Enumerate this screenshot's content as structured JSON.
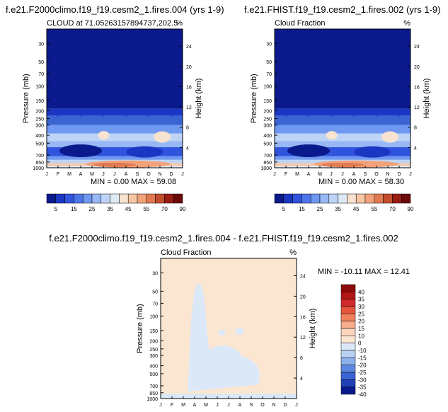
{
  "chart_data": [
    {
      "type": "heatmap",
      "title": "f.e21.F2000climo.f19_f19.cesm2_1.fires.004 (yrs 1-9)",
      "left_label": "CLOUD at 71.05263157894737,202.5",
      "right_label": "%",
      "xlabel": "",
      "ylabel": "Pressure (mb)",
      "ylabel_right": "Height (km)",
      "x_ticks": [
        "J",
        "F",
        "M",
        "A",
        "M",
        "J",
        "J",
        "A",
        "S",
        "O",
        "N",
        "D",
        "J"
      ],
      "y_ticks": [
        "30",
        "50",
        "70",
        "100",
        "150",
        "200",
        "250",
        "300",
        "400",
        "500",
        "700",
        "850",
        "1000"
      ],
      "y_ticks_right": [
        "4",
        "8",
        "12",
        "16",
        "20",
        "24"
      ],
      "stats": "MIN =   0.00 MAX =  59.08",
      "colorbar_labels": [
        "5",
        "15",
        "25",
        "35",
        "45",
        "55",
        "70",
        "90"
      ],
      "min": 0.0,
      "max": 59.08
    },
    {
      "type": "heatmap",
      "title": "f.e21.FHIST.f19_f19.cesm2_1.fires.002 (yrs 1-9)",
      "left_label": "Cloud Fraction",
      "right_label": "%",
      "xlabel": "",
      "ylabel": "Pressure (mb)",
      "ylabel_right": "Height (km)",
      "x_ticks": [
        "J",
        "F",
        "M",
        "A",
        "M",
        "J",
        "J",
        "A",
        "S",
        "O",
        "N",
        "D",
        "J"
      ],
      "y_ticks": [
        "30",
        "50",
        "70",
        "100",
        "150",
        "200",
        "250",
        "300",
        "400",
        "500",
        "700",
        "850",
        "1000"
      ],
      "y_ticks_right": [
        "4",
        "8",
        "12",
        "16",
        "20",
        "24"
      ],
      "stats": "MIN =   0.00 MAX =  58.30",
      "colorbar_labels": [
        "5",
        "15",
        "25",
        "35",
        "45",
        "55",
        "70",
        "90"
      ],
      "min": 0.0,
      "max": 58.3
    },
    {
      "type": "heatmap",
      "title": "f.e21.F2000climo.f19_f19.cesm2_1.fires.004 - f.e21.FHIST.f19_f19.cesm2_1.fires.002",
      "left_label": "Cloud Fraction",
      "right_label": "%",
      "xlabel": "",
      "ylabel": "Pressure (mb)",
      "ylabel_right": "Height (km)",
      "x_ticks": [
        "J",
        "F",
        "M",
        "A",
        "M",
        "J",
        "J",
        "A",
        "S",
        "O",
        "N",
        "D",
        "J"
      ],
      "y_ticks": [
        "30",
        "50",
        "70",
        "100",
        "150",
        "200",
        "250",
        "300",
        "400",
        "500",
        "700",
        "850",
        "1000"
      ],
      "y_ticks_right": [
        "4",
        "8",
        "12",
        "16",
        "20",
        "24"
      ],
      "stats": "MIN = -10.11 MAX =  12.41",
      "colorbar_labels": [
        "40",
        "35",
        "30",
        "25",
        "20",
        "15",
        "10",
        "0",
        "-10",
        "-15",
        "-20",
        "-25",
        "-30",
        "-35",
        "-40"
      ],
      "min": -10.11,
      "max": 12.41
    }
  ],
  "colors": {
    "abs_scale": [
      "#0a1a8c",
      "#1c36c4",
      "#3054dc",
      "#4c76e8",
      "#6f98f0",
      "#97b8f4",
      "#bdd4f6",
      "#dde9f5",
      "#f7e3cf",
      "#f7c6a4",
      "#f1a27a",
      "#e17a52",
      "#c44d2e",
      "#9a1d14",
      "#6b0a08"
    ],
    "diff_scale": [
      "#8c0a0a",
      "#b31414",
      "#d22a2a",
      "#e5553c",
      "#f0825e",
      "#f6ae8c",
      "#fbd6bd",
      "#fbe6d2",
      "#dbe8f8",
      "#b8d0f2",
      "#8bb0ea",
      "#5d88e0",
      "#3a64d2",
      "#1f40b8",
      "#0a1a8c"
    ],
    "diff_fill": "#fbe6d2",
    "diff_neg": "#dbe8f8"
  }
}
